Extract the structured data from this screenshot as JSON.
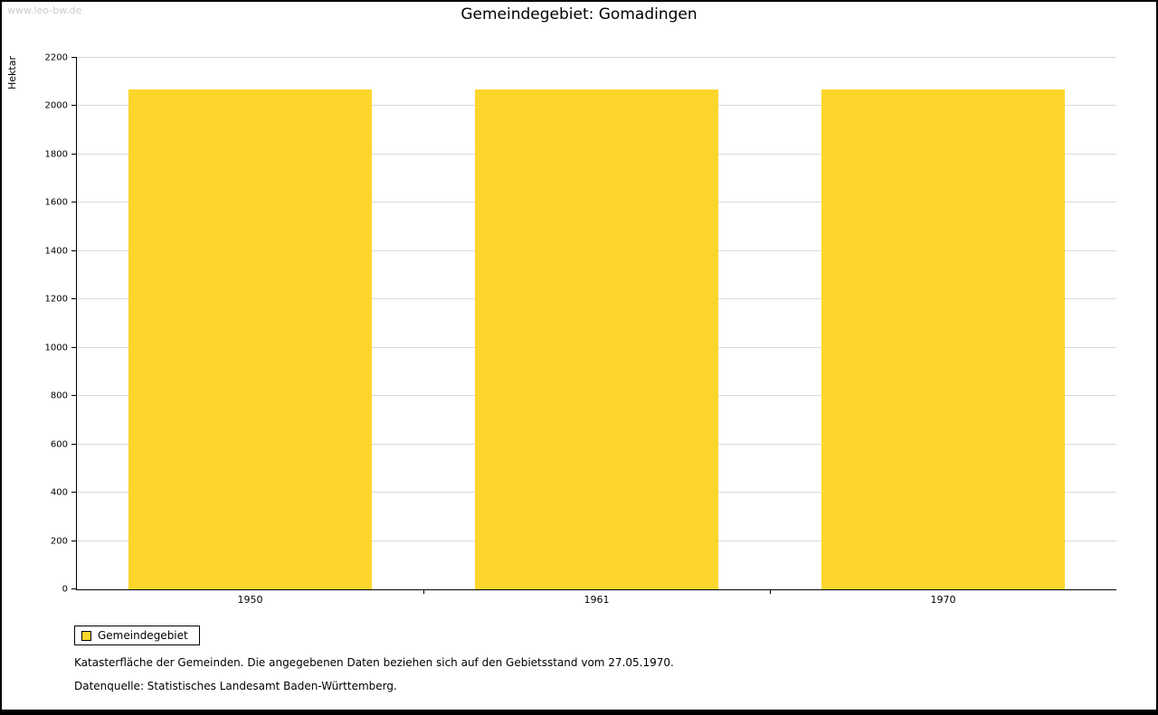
{
  "watermark": "www.leo-bw.de",
  "title": "Gemeindegebiet: Gomadingen",
  "chart_data": {
    "type": "bar",
    "title": "Gemeindegebiet: Gomadingen",
    "categories": [
      "1950",
      "1961",
      "1970"
    ],
    "values": [
      2070,
      2070,
      2070
    ],
    "xlabel": "",
    "ylabel": "Hektar",
    "ylim": [
      0,
      2200
    ],
    "ytick_step": 200,
    "bar_color": "#FCD62B",
    "grid": true,
    "legend_position": "bottom-left",
    "legend_entries": [
      "Gemeindegebiet"
    ]
  },
  "legend": {
    "label": "Gemeindegebiet"
  },
  "footnotes": [
    "Katasterfläche der Gemeinden. Die angegebenen Daten beziehen sich auf den Gebietsstand vom 27.05.1970.",
    "Datenquelle: Statistisches Landesamt Baden-Württemberg."
  ]
}
